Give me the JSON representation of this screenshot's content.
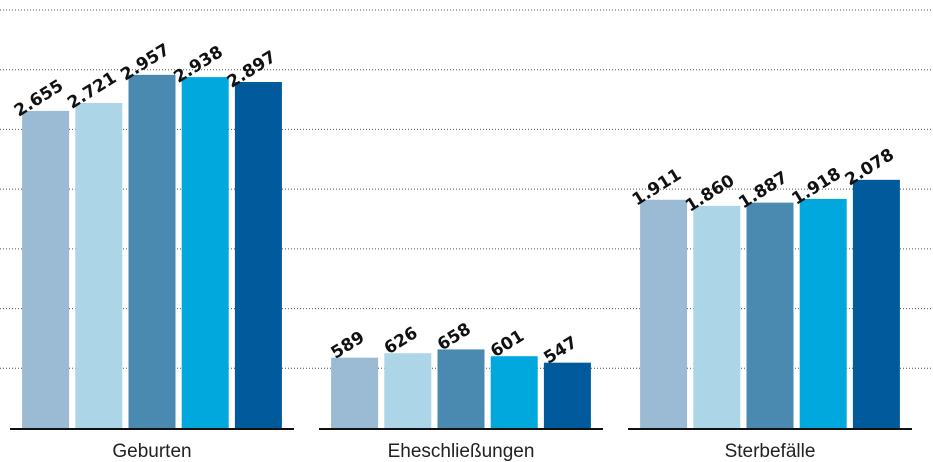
{
  "chart_data": {
    "type": "bar",
    "categories": [
      "Geburten",
      "Eheschließungen",
      "Sterbefälle"
    ],
    "series": [
      {
        "color": "#9bbbd4",
        "values": [
          2655,
          589,
          1911
        ],
        "value_labels": [
          "2.655",
          "589",
          "1.911"
        ]
      },
      {
        "color": "#acd5e8",
        "values": [
          2721,
          626,
          1860
        ],
        "value_labels": [
          "2.721",
          "626",
          "1.860"
        ]
      },
      {
        "color": "#4a8ab0",
        "values": [
          2957,
          658,
          1887
        ],
        "value_labels": [
          "2.957",
          "658",
          "1.887"
        ]
      },
      {
        "color": "#00a8dd",
        "values": [
          2938,
          601,
          1918
        ],
        "value_labels": [
          "2.938",
          "601",
          "1.918"
        ]
      },
      {
        "color": "#005a9c",
        "values": [
          2897,
          547,
          2078
        ],
        "value_labels": [
          "2.897",
          "547",
          "2.078"
        ]
      }
    ],
    "ylim": [
      0,
      3500
    ],
    "yticks": [
      0,
      500,
      1000,
      1500,
      2000,
      2500,
      3000,
      3500
    ],
    "grid": true
  }
}
